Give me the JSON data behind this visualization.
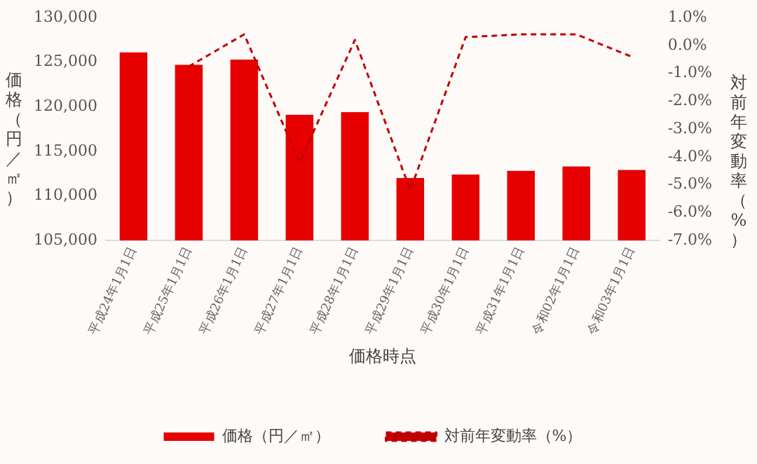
{
  "chart_data": {
    "type": "bar",
    "xlabel": "価格時点",
    "ylabel": "価格（円／㎡）",
    "y2label": "対前年変動率（%）",
    "categories": [
      "平成24年1月1日",
      "平成25年1月1日",
      "平成26年1月1日",
      "平成27年1月1日",
      "平成28年1月1日",
      "平成29年1月1日",
      "平成30年1月1日",
      "平成31年1月1日",
      "令和02年1月1日",
      "令和03年1月1日"
    ],
    "series": [
      {
        "name": "価格（円／㎡）",
        "color": "#e60000",
        "values": [
          126100,
          124700,
          125300,
          119100,
          119400,
          112000,
          112400,
          112800,
          113300,
          112900
        ]
      },
      {
        "name": "対前年変動率（%）",
        "type": "line",
        "axis": "y2",
        "color": "#c00000",
        "line_style": "dashed",
        "marker": "none",
        "values": [
          null,
          -0.75,
          0.4,
          -4.2,
          0.2,
          -5.2,
          0.3,
          0.4,
          0.4,
          -0.4
        ]
      }
    ],
    "ylim": [
      105000,
      130000
    ],
    "yticks": [
      {
        "value": 105000,
        "label": "105,000"
      },
      {
        "value": 110000,
        "label": "110,000"
      },
      {
        "value": 115000,
        "label": "115,000"
      },
      {
        "value": 120000,
        "label": "120,000"
      },
      {
        "value": 125000,
        "label": "125,000"
      },
      {
        "value": 130000,
        "label": "130,000"
      }
    ],
    "y2lim": [
      -7,
      1
    ],
    "y2ticks": [
      {
        "value": -7,
        "label": "-7.0%"
      },
      {
        "value": -6,
        "label": "-6.0%"
      },
      {
        "value": -5,
        "label": "-5.0%"
      },
      {
        "value": -4,
        "label": "-4.0%"
      },
      {
        "value": -3,
        "label": "-3.0%"
      },
      {
        "value": -2,
        "label": "-2.0%"
      },
      {
        "value": -1,
        "label": "-1.0%"
      },
      {
        "value": 0,
        "label": "0.0%"
      },
      {
        "value": 1,
        "label": "1.0%"
      }
    ],
    "grid": false,
    "legend": "bottom"
  }
}
